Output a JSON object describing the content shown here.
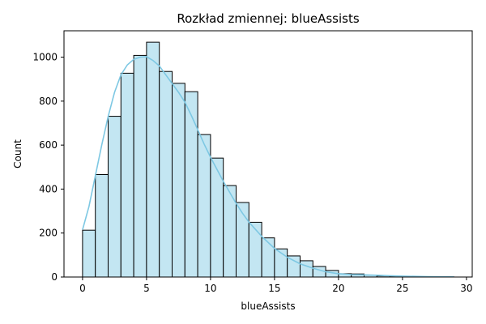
{
  "chart_data": {
    "type": "bar",
    "title": "Rozkład zmiennej: blueAssists",
    "xlabel": "blueAssists",
    "ylabel": "Count",
    "xlim": [
      -1.45,
      30.45
    ],
    "ylim": [
      0,
      1120
    ],
    "xticks": [
      0,
      5,
      10,
      15,
      20,
      25,
      30
    ],
    "yticks": [
      0,
      200,
      400,
      600,
      800,
      1000
    ],
    "bin_width": 1,
    "bins_start": [
      0,
      1,
      2,
      3,
      4,
      5,
      6,
      7,
      8,
      9,
      10,
      11,
      12,
      13,
      14,
      15,
      16,
      17,
      18,
      19,
      20,
      21,
      22,
      23,
      24,
      25,
      26,
      27,
      28
    ],
    "values": [
      213,
      466,
      731,
      927,
      1008,
      1068,
      935,
      881,
      843,
      648,
      541,
      416,
      339,
      249,
      178,
      128,
      96,
      74,
      48,
      30,
      15,
      14,
      9,
      5,
      4,
      2,
      1,
      1,
      1
    ],
    "kde": {
      "x": [
        0,
        0.5,
        1,
        1.5,
        2,
        2.5,
        3,
        3.5,
        4,
        4.5,
        5,
        5.5,
        6,
        6.5,
        7,
        7.5,
        8,
        8.5,
        9,
        9.5,
        10,
        10.5,
        11,
        11.5,
        12,
        12.5,
        13,
        14,
        15,
        16,
        17,
        18,
        19,
        20,
        21,
        22,
        23,
        24,
        25,
        26,
        27,
        28,
        29
      ],
      "y": [
        215,
        320,
        460,
        600,
        730,
        840,
        920,
        965,
        990,
        1000,
        1002,
        985,
        960,
        920,
        880,
        840,
        795,
        735,
        670,
        605,
        545,
        490,
        435,
        385,
        335,
        290,
        250,
        185,
        130,
        90,
        60,
        40,
        24,
        15,
        11,
        10,
        8,
        6,
        4,
        3,
        2,
        1,
        1
      ]
    },
    "bar_color": "#c3e6f2",
    "bar_edge_color": "#000000",
    "kde_color": "#7ec8e3",
    "grid": false
  }
}
